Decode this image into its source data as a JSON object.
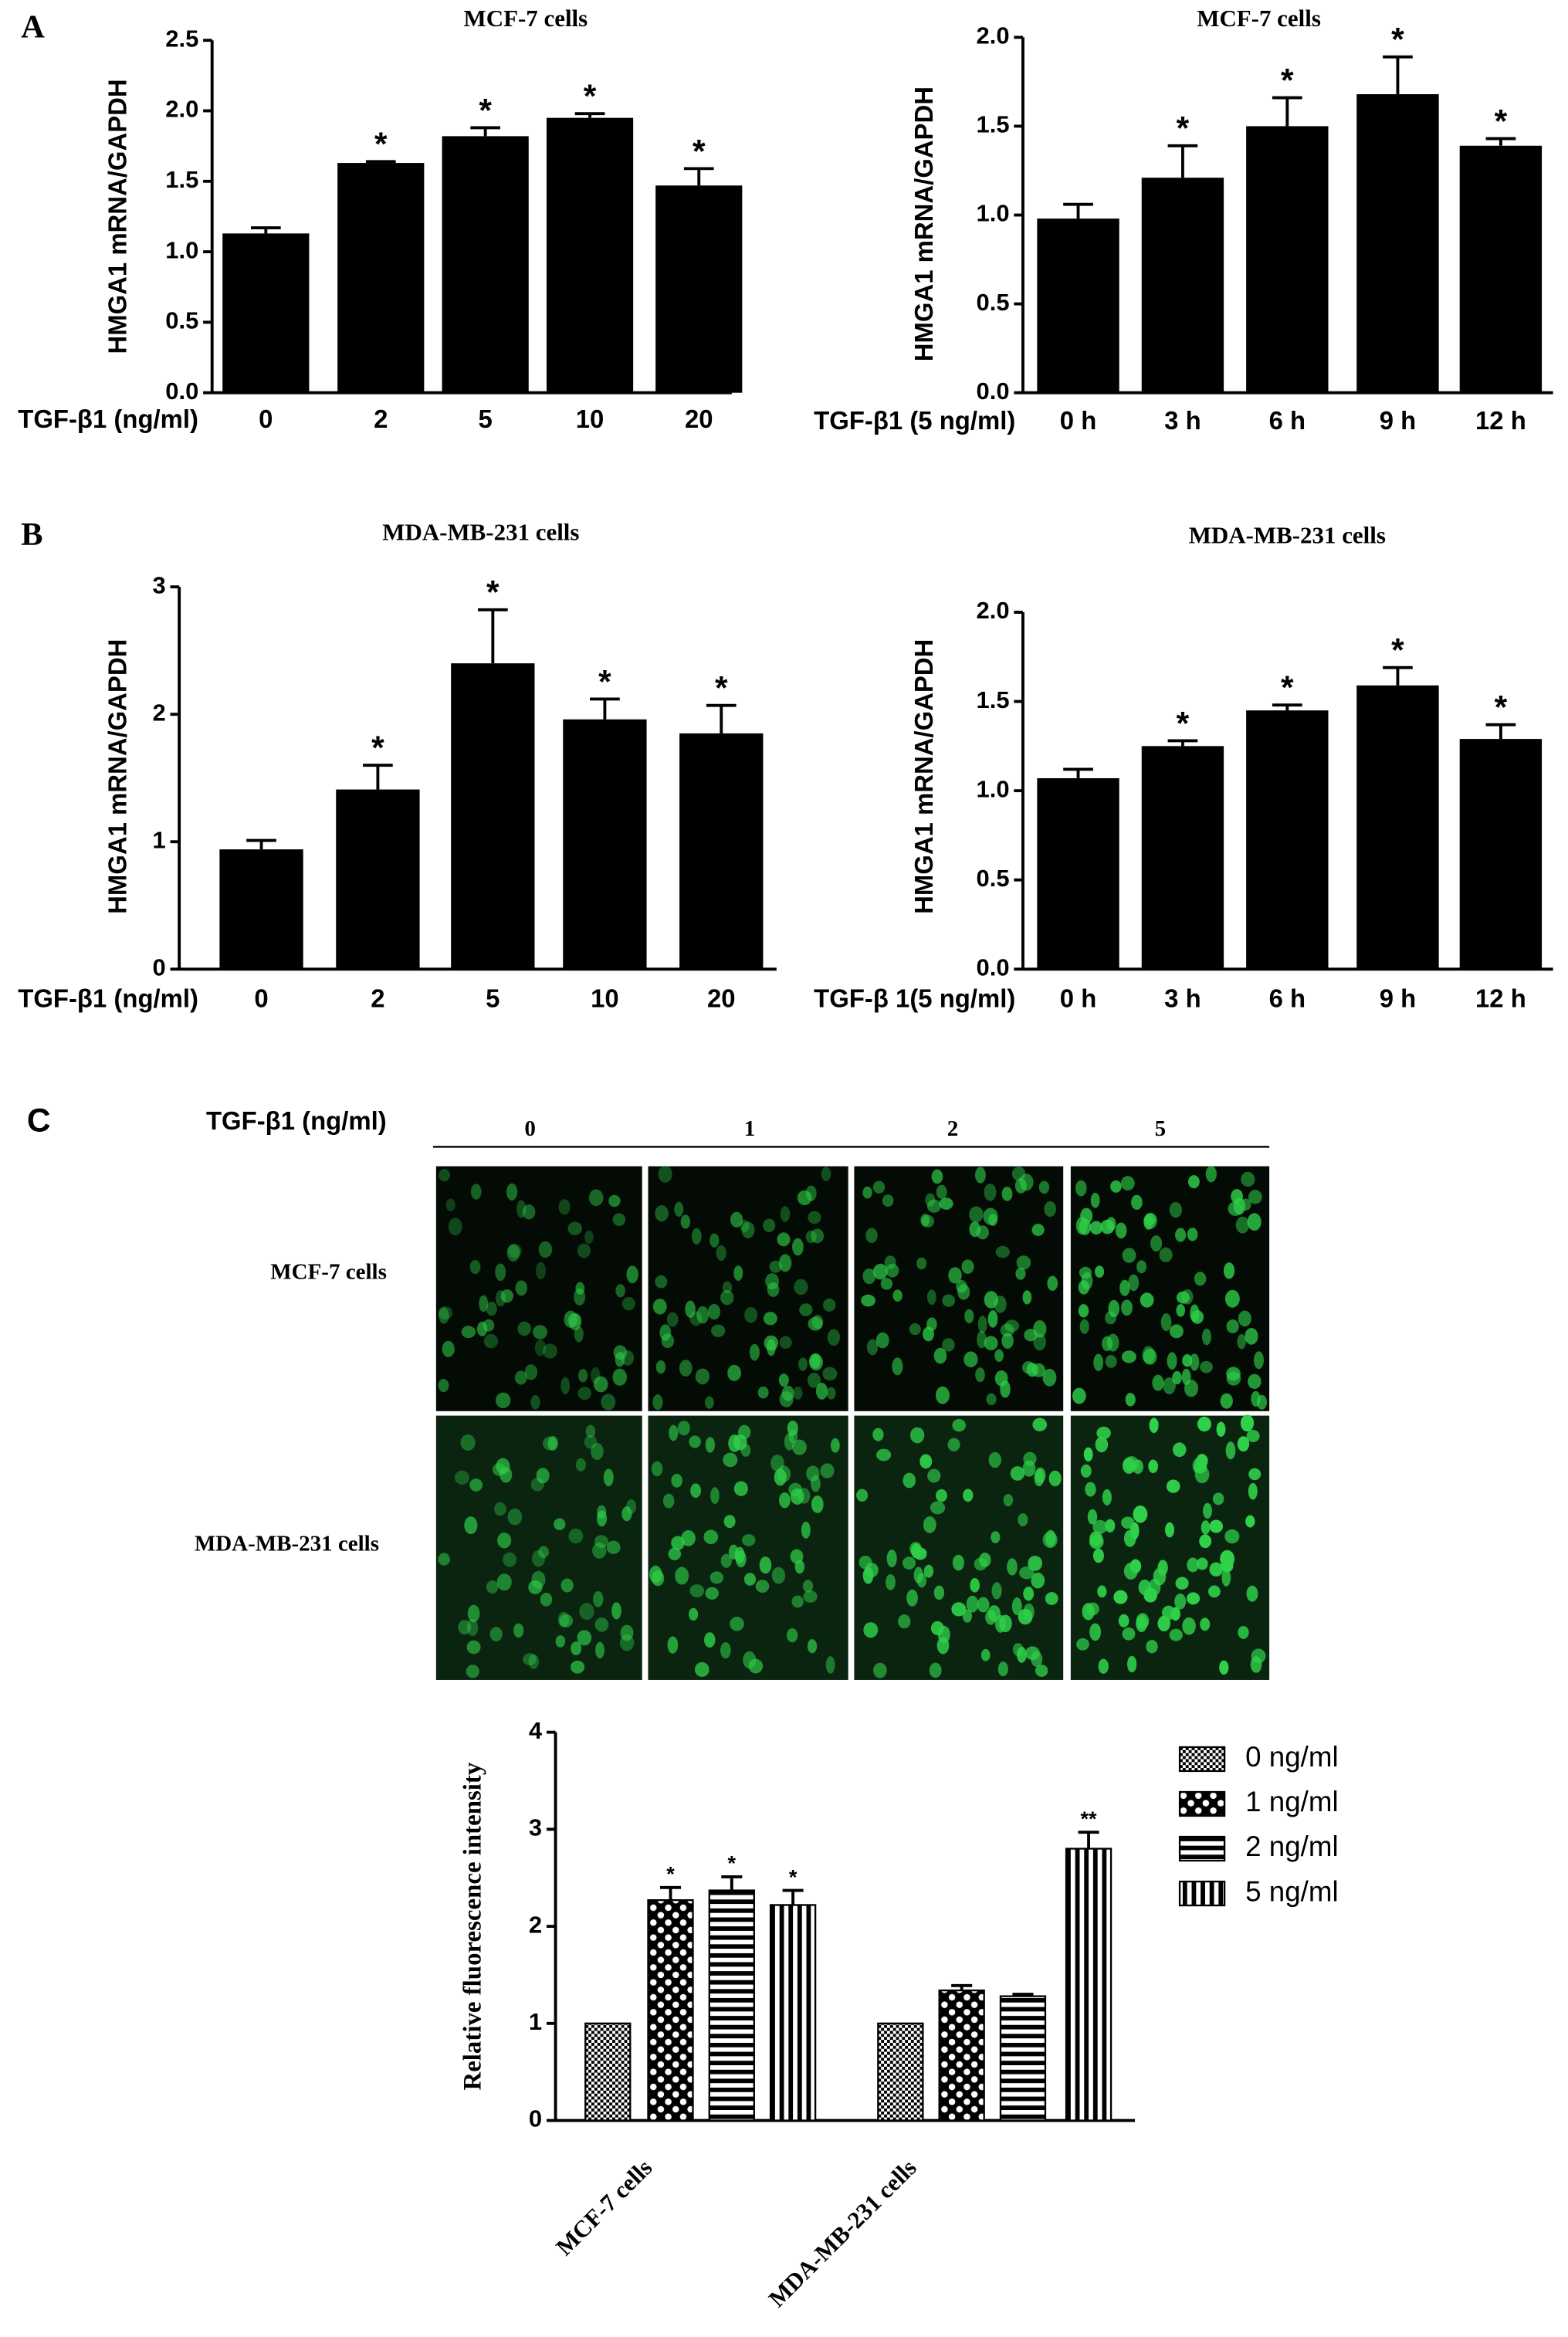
{
  "panel_labels": [
    "A",
    "B",
    "C"
  ],
  "micrograph": {
    "column_header": "TGF-β1  (ng/ml)",
    "columns": [
      "0",
      "1",
      "2",
      "5"
    ],
    "rows": [
      "MCF-7 cells",
      "MDA-MB-231 cells"
    ]
  },
  "chart_data": [
    {
      "type": "bar",
      "title": "MCF-7 cells",
      "ylabel": "HMGA1 mRNA/GAPDH",
      "xlabel": "TGF-β1  (ng/ml)",
      "categories": [
        "0",
        "2",
        "5",
        "10",
        "20"
      ],
      "values": [
        1.13,
        1.63,
        1.82,
        1.95,
        1.47
      ],
      "errors": [
        0.04,
        0.01,
        0.06,
        0.03,
        0.12
      ],
      "significance": [
        null,
        "*",
        "*",
        "*",
        "*"
      ],
      "color": "#000000",
      "ylim": [
        0,
        2.5
      ],
      "yticks": [
        {
          "value": 0,
          "label": "0.0"
        },
        0.5,
        {
          "value": 1,
          "label": "1.0"
        },
        1.5,
        {
          "value": 2,
          "label": "2.0"
        },
        2.5
      ]
    },
    {
      "type": "bar",
      "title": "MCF-7  cells",
      "ylabel": "HMGA1 mRNA/GAPDH",
      "xlabel": "TGF-β1 (5 ng/ml)",
      "categories": [
        "0 h",
        "3 h",
        "6 h",
        "9 h",
        "12 h"
      ],
      "values": [
        0.98,
        1.21,
        1.5,
        1.68,
        1.39
      ],
      "errors": [
        0.08,
        0.18,
        0.16,
        0.21,
        0.04
      ],
      "significance": [
        null,
        "*",
        "*",
        "*",
        "*"
      ],
      "color": "#000000",
      "ylim": [
        0,
        2
      ],
      "yticks": [
        {
          "value": 0,
          "label": "0.0"
        },
        0.5,
        {
          "value": 1,
          "label": "1.0"
        },
        1.5,
        {
          "value": 2,
          "label": "2.0"
        }
      ]
    },
    {
      "type": "bar",
      "title": "MDA-MB-231 cells",
      "ylabel": "HMGA1 mRNA/GAPDH",
      "xlabel": "TGF-β1  (ng/ml)",
      "categories": [
        "0",
        "2",
        "5",
        "10",
        "20"
      ],
      "values": [
        0.94,
        1.41,
        2.4,
        1.96,
        1.85
      ],
      "errors": [
        0.07,
        0.19,
        0.42,
        0.16,
        0.22
      ],
      "significance": [
        null,
        "*",
        "*",
        "*",
        "*"
      ],
      "color": "#000000",
      "ylim": [
        0,
        3
      ],
      "yticks": [
        0,
        1,
        2,
        3
      ]
    },
    {
      "type": "bar",
      "title": "MDA-MB-231 cells",
      "ylabel": "HMGA1 mRNA/GAPDH",
      "xlabel": "TGF-β 1(5 ng/ml)",
      "categories": [
        "0 h",
        "3 h",
        "6 h",
        "9 h",
        "12 h"
      ],
      "values": [
        1.07,
        1.25,
        1.45,
        1.59,
        1.29
      ],
      "errors": [
        0.05,
        0.03,
        0.03,
        0.1,
        0.08
      ],
      "significance": [
        null,
        "*",
        "*",
        "*",
        "*"
      ],
      "color": "#000000",
      "ylim": [
        0,
        2
      ],
      "yticks": [
        {
          "value": 0,
          "label": "0.0"
        },
        0.5,
        {
          "value": 1,
          "label": "1.0"
        },
        1.5,
        {
          "value": 2,
          "label": "2.0"
        }
      ]
    },
    {
      "type": "grouped_bar",
      "ylabel": "Relative fluorescence intensity",
      "categories": [
        "MCF-7 cells",
        "MDA-MB-231 cells"
      ],
      "series": [
        {
          "name": "0 ng/ml",
          "pattern": "fine-check",
          "values": [
            1.0,
            1.0
          ],
          "errors": [
            0,
            0
          ],
          "significance": [
            null,
            null
          ]
        },
        {
          "name": "1 ng/ml",
          "pattern": "coarse-check",
          "values": [
            2.27,
            1.34
          ],
          "errors": [
            0.13,
            0.05
          ],
          "significance": [
            "*",
            null
          ]
        },
        {
          "name": "2 ng/ml",
          "pattern": "h-stripes",
          "values": [
            2.37,
            1.28
          ],
          "errors": [
            0.14,
            0.02
          ],
          "significance": [
            "*",
            null
          ]
        },
        {
          "name": "5 ng/ml",
          "pattern": "v-stripes",
          "values": [
            2.22,
            2.8
          ],
          "errors": [
            0.15,
            0.17
          ],
          "significance": [
            "*",
            "**"
          ]
        }
      ],
      "ylim": [
        0,
        4
      ],
      "yticks": [
        0,
        1,
        2,
        3,
        4
      ],
      "legend": "right"
    }
  ]
}
